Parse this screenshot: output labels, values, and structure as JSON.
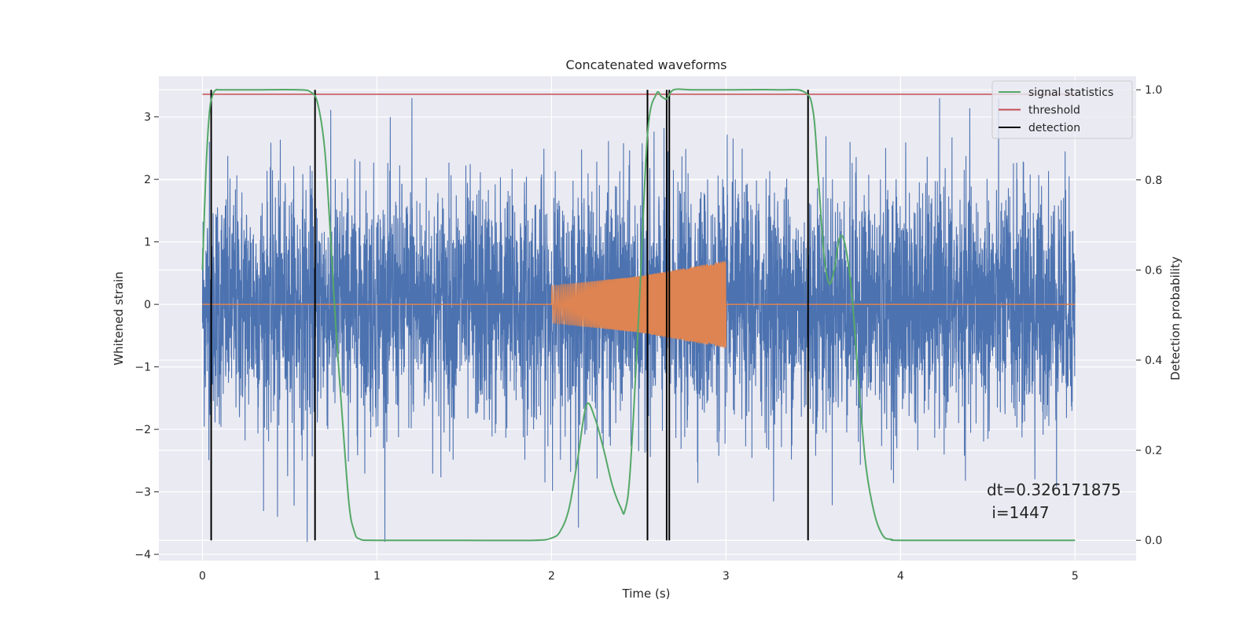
{
  "chart_data": {
    "type": "line",
    "title": "Concatenated waveforms",
    "xlabel": "Time (s)",
    "ylabel": "Whitened strain",
    "y2label": "Detection probability",
    "xlim": [
      -0.25,
      5.35
    ],
    "ylim": [
      -4.1,
      3.65
    ],
    "y2lim": [
      -0.045,
      1.03
    ],
    "x_ticks": [
      0,
      1,
      2,
      3,
      4,
      5
    ],
    "y_ticks": [
      -4,
      -3,
      -2,
      -1,
      0,
      1,
      2,
      3
    ],
    "y2_ticks": [
      0.0,
      0.2,
      0.4,
      0.6,
      0.8,
      1.0
    ],
    "y2_tick_labels": [
      "0.0",
      "0.2",
      "0.4",
      "0.6",
      "0.8",
      "1.0"
    ],
    "grid": true,
    "legend_position": "top-right",
    "colors": {
      "strain": "#4c72b0",
      "injection": "#dd8452",
      "signal_statistics": "#55a868",
      "threshold": "#c44e52",
      "detection": "#000000",
      "axes_bg": "#eaeaf2",
      "grid": "#ffffff"
    },
    "series": [
      {
        "name": "strain",
        "style": "noise",
        "x_range": [
          0,
          5
        ],
        "approx_amplitude_range": [
          -3.8,
          3.3
        ],
        "notable_extremes": [
          {
            "x": 0.04,
            "y": 2.6
          },
          {
            "x": 0.43,
            "y": -3.4
          },
          {
            "x": 0.6,
            "y": -3.8
          },
          {
            "x": 1.2,
            "y": 3.3
          },
          {
            "x": 4.77,
            "y": -2.8
          }
        ]
      },
      {
        "name": "injection",
        "style": "chirp",
        "x": [
          2.0,
          2.5,
          3.0
        ],
        "envelope": [
          0.3,
          0.45,
          0.7
        ]
      },
      {
        "name": "signal statistics",
        "x": [
          0.0,
          0.02,
          0.04,
          0.06,
          0.08,
          0.1,
          0.3,
          0.55,
          0.62,
          0.66,
          0.7,
          0.73,
          0.76,
          0.8,
          0.84,
          0.87,
          0.9,
          1.0,
          1.5,
          1.9,
          2.0,
          2.05,
          2.1,
          2.15,
          2.2,
          2.25,
          2.3,
          2.35,
          2.4,
          2.42,
          2.45,
          2.5,
          2.55,
          2.6,
          2.63,
          2.66,
          2.7,
          2.8,
          3.0,
          3.3,
          3.45,
          3.5,
          3.53,
          3.56,
          3.59,
          3.62,
          3.65,
          3.68,
          3.72,
          3.76,
          3.8,
          3.85,
          3.9,
          3.95,
          4.0,
          4.5,
          5.0
        ],
        "y": [
          0.6,
          0.82,
          0.95,
          0.99,
          1.0,
          1.0,
          1.0,
          1.0,
          0.995,
          0.97,
          0.87,
          0.7,
          0.5,
          0.28,
          0.08,
          0.02,
          0.003,
          0.0,
          0.0,
          0.0,
          0.005,
          0.02,
          0.07,
          0.18,
          0.3,
          0.27,
          0.2,
          0.12,
          0.07,
          0.065,
          0.15,
          0.5,
          0.9,
          0.99,
          0.985,
          0.98,
          1.0,
          1.0,
          1.0,
          1.0,
          0.995,
          0.95,
          0.8,
          0.64,
          0.57,
          0.6,
          0.67,
          0.66,
          0.55,
          0.35,
          0.17,
          0.06,
          0.01,
          0.002,
          0.0,
          0.0,
          0.0
        ]
      },
      {
        "name": "threshold",
        "x": [
          0.0,
          5.0
        ],
        "y": [
          0.99,
          0.99
        ]
      },
      {
        "name": "detection",
        "x": [
          0.05,
          0.645,
          2.55,
          2.66,
          2.675,
          3.47
        ],
        "y_range": [
          0.0,
          1.0
        ]
      }
    ],
    "legend": [
      "signal statistics",
      "threshold",
      "detection"
    ],
    "annotation": {
      "line1": "dt=0.326171875",
      "line2": " i=1447"
    }
  }
}
